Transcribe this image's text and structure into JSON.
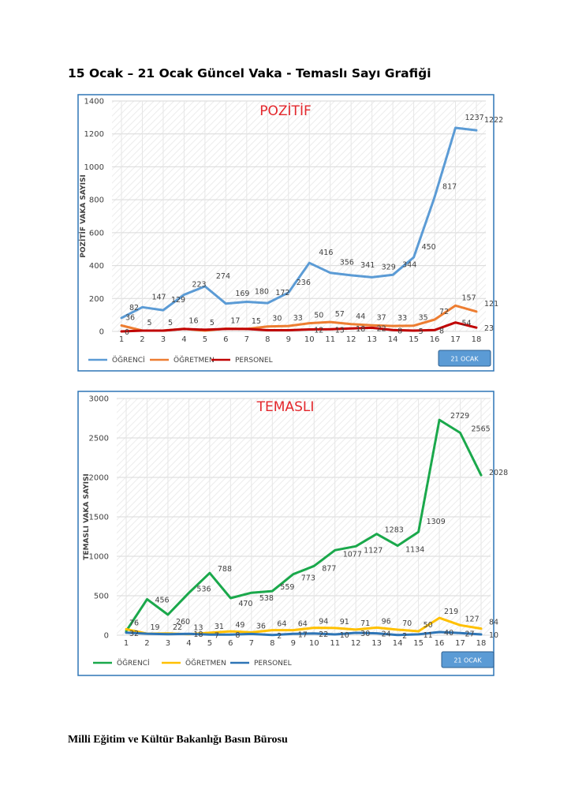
{
  "page": {
    "title": "15 Ocak – 21 Ocak Güncel Vaka - Temaslı Sayı Grafiği",
    "footer": "Milli Eğitim ve Kültür Bakanlığı Basın Bürosu"
  },
  "chart_data": [
    {
      "type": "line",
      "title": "POZİTİF",
      "ylabel": "POZİTİF VAKA SAYISI",
      "xlabel": "",
      "categories": [
        "1",
        "2",
        "3",
        "4",
        "5",
        "6",
        "7",
        "8",
        "9",
        "10",
        "11",
        "12",
        "13",
        "14",
        "15",
        "16",
        "17",
        "18"
      ],
      "ylim": [
        0,
        1400
      ],
      "yticks": [
        0,
        200,
        400,
        600,
        800,
        1000,
        1200,
        1400
      ],
      "badge": "21 OCAK",
      "legend_position": "bottom-left",
      "series": [
        {
          "name": "ÖĞRENCİ",
          "color": "#5b9bd5",
          "values": [
            82,
            147,
            129,
            223,
            274,
            169,
            180,
            172,
            236,
            416,
            356,
            341,
            329,
            344,
            450,
            817,
            1237,
            1222
          ],
          "labels": [
            "82",
            "147",
            "129",
            "223",
            "274",
            "169",
            "180",
            "172",
            "236",
            "416",
            "356",
            "341",
            "329",
            "344",
            "450",
            "817",
            "1237",
            "1222"
          ]
        },
        {
          "name": "ÖĞRETMEN",
          "color": "#ed7d31",
          "values": [
            36,
            5,
            5,
            16,
            5,
            17,
            15,
            30,
            33,
            50,
            57,
            44,
            37,
            33,
            35,
            72,
            157,
            121
          ],
          "labels": [
            "36",
            "5",
            "5",
            "16",
            "5",
            "17",
            "15",
            "30",
            "33",
            "50",
            "57",
            "44",
            "37",
            "33",
            "35",
            "72",
            "157",
            "121"
          ]
        },
        {
          "name": "PERSONEL",
          "color": "#c00000",
          "values": [
            0,
            5,
            5,
            15,
            10,
            15,
            15,
            7,
            7,
            12,
            13,
            18,
            22,
            8,
            5,
            8,
            54,
            23
          ],
          "labels": [
            "0",
            "",
            "",
            "",
            "",
            "",
            "",
            "",
            "",
            "12",
            "13",
            "18",
            "22",
            "8",
            "5",
            "8",
            "54",
            "23"
          ]
        }
      ]
    },
    {
      "type": "line",
      "title": "TEMASLI",
      "ylabel": "TEMASLI VAKA SAYISI",
      "xlabel": "",
      "categories": [
        "1",
        "2",
        "3",
        "4",
        "5",
        "6",
        "7",
        "8",
        "9",
        "10",
        "11",
        "12",
        "13",
        "14",
        "15",
        "16",
        "17",
        "18"
      ],
      "ylim": [
        0,
        3000
      ],
      "yticks": [
        0,
        500,
        1000,
        1500,
        2000,
        2500,
        3000
      ],
      "badge": "21 OCAK",
      "legend_position": "bottom-left",
      "series": [
        {
          "name": "ÖĞRENCİ",
          "color": "#1aa84b",
          "values": [
            52,
            456,
            260,
            536,
            788,
            470,
            538,
            559,
            773,
            877,
            1077,
            1127,
            1283,
            1134,
            1309,
            2729,
            2565,
            2028
          ],
          "labels": [
            "",
            "456",
            "260",
            "536",
            "788",
            "470",
            "538",
            "559",
            "773",
            "877",
            "1077",
            "1127",
            "1283",
            "1134",
            "1309",
            "2729",
            "2565",
            "2028"
          ]
        },
        {
          "name": "ÖĞRETMEN",
          "color": "#ffc000",
          "values": [
            76,
            19,
            22,
            13,
            31,
            49,
            36,
            64,
            64,
            94,
            91,
            71,
            96,
            70,
            50,
            219,
            127,
            84
          ],
          "labels": [
            "76",
            "19",
            "22",
            "13",
            "31",
            "49",
            "36",
            "64",
            "64",
            "94",
            "91",
            "71",
            "96",
            "70",
            "50",
            "219",
            "127",
            "84"
          ]
        },
        {
          "name": "PERSONEL",
          "color": "#2e75b6",
          "values": [
            32,
            19,
            12,
            18,
            7,
            8,
            16,
            2,
            17,
            22,
            10,
            30,
            24,
            2,
            11,
            40,
            27,
            10
          ],
          "labels": [
            "32",
            "",
            "",
            "18",
            "7",
            "8",
            "",
            "2",
            "17",
            "22",
            "10",
            "30",
            "24",
            "2",
            "11",
            "40",
            "27",
            "10"
          ]
        }
      ]
    }
  ]
}
